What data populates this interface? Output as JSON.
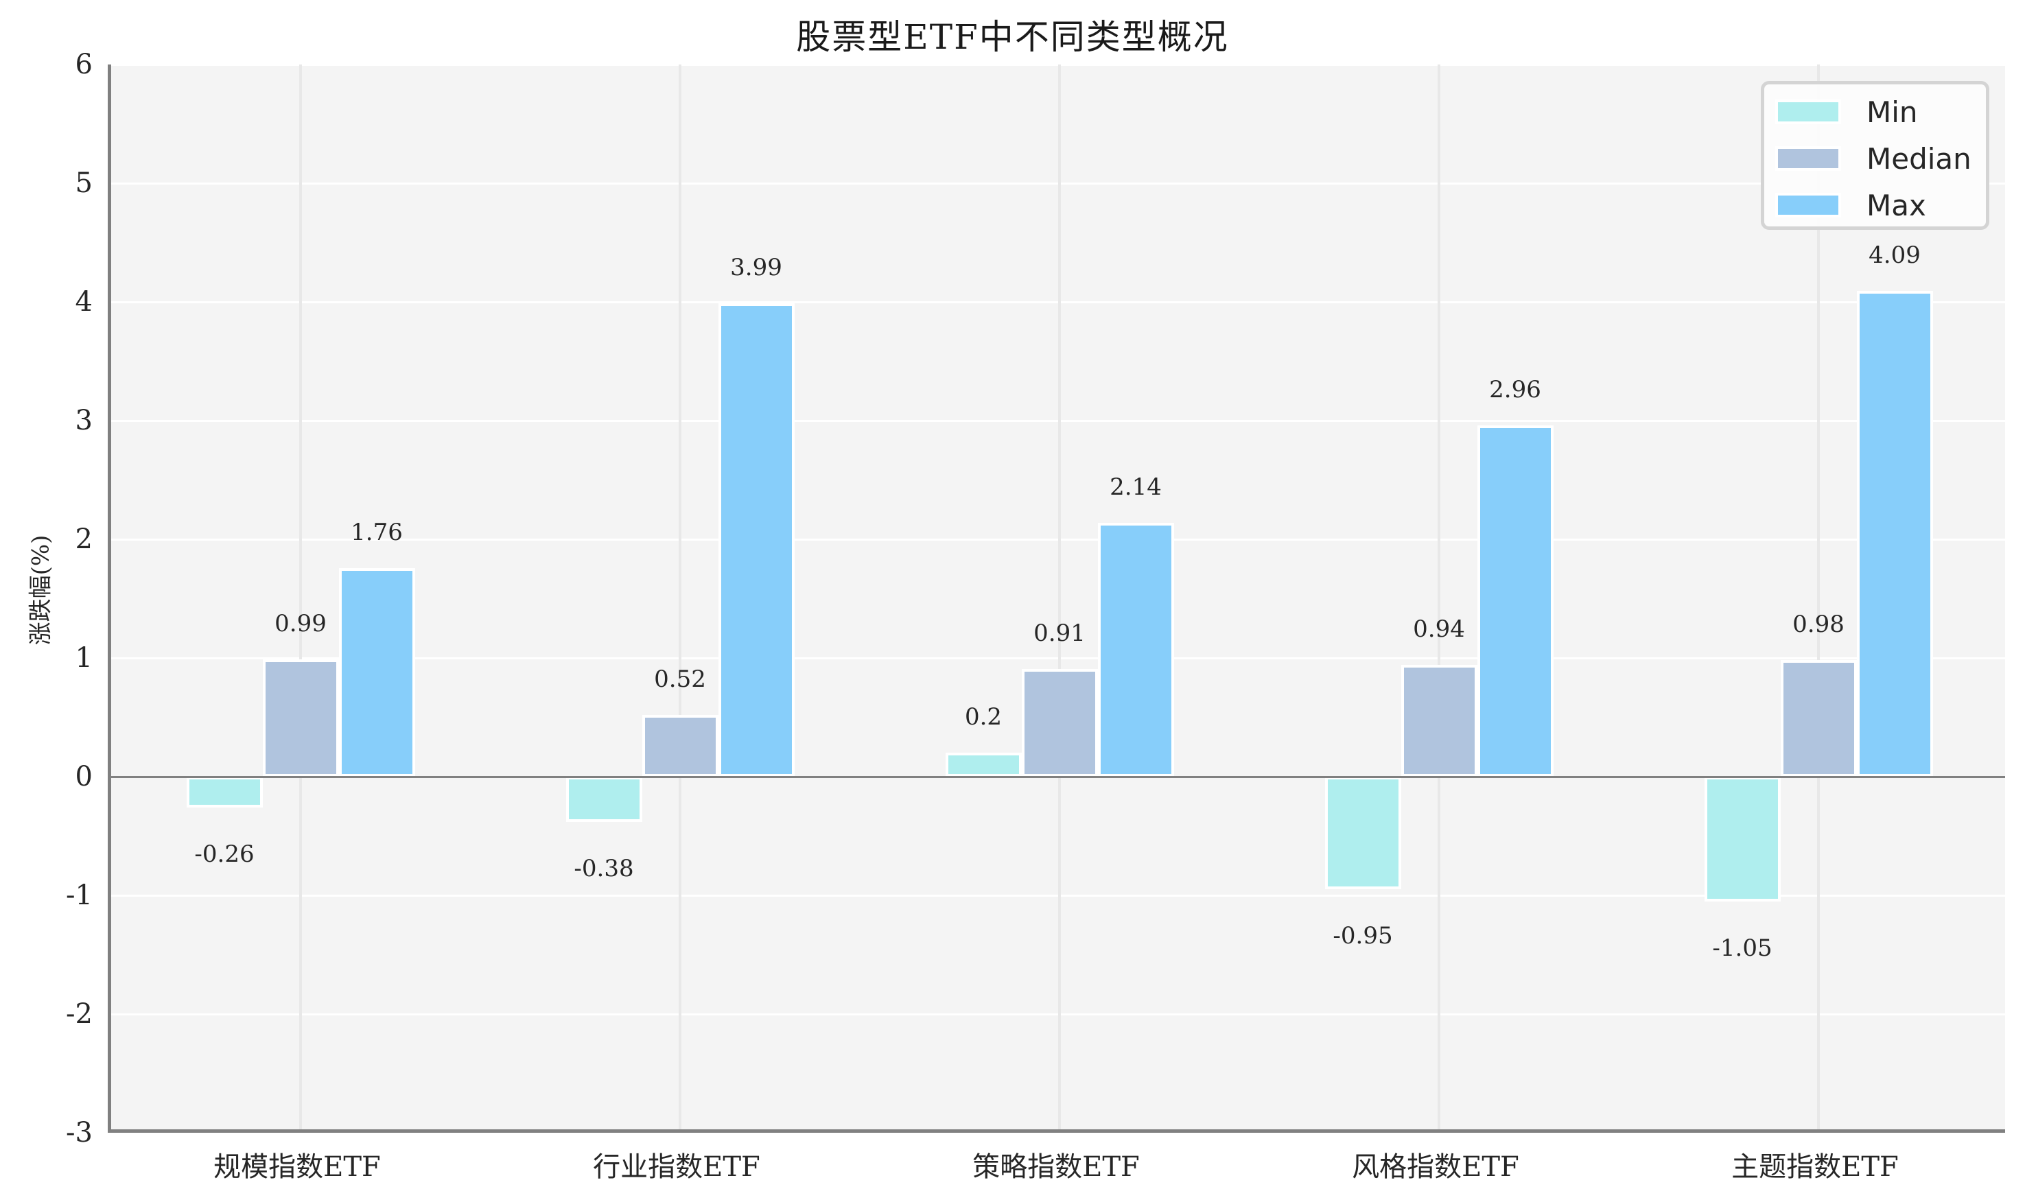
{
  "title": "股票型ETF中不同类型概况",
  "y_axis_label": "涨跌幅(%)",
  "y_ticks": [
    "6",
    "5",
    "4",
    "3",
    "2",
    "1",
    "0",
    "-1",
    "-2",
    "-3"
  ],
  "legend": [
    {
      "label": "Min",
      "color": "#afeeee"
    },
    {
      "label": "Median",
      "color": "#b0c4de"
    },
    {
      "label": "Max",
      "color": "#87cefa"
    }
  ],
  "chart_data": {
    "type": "bar",
    "title": "股票型ETF中不同类型概况",
    "xlabel": "",
    "ylabel": "涨跌幅(%)",
    "ylim": [
      -3,
      6
    ],
    "yticks": [
      -3,
      -2,
      -1,
      0,
      1,
      2,
      3,
      4,
      5,
      6
    ],
    "grid": true,
    "legend_position": "upper right",
    "categories": [
      "规模指数ETF",
      "行业指数ETF",
      "策略指数ETF",
      "风格指数ETF",
      "主题指数ETF"
    ],
    "series": [
      {
        "name": "Min",
        "color": "#afeeee",
        "values": [
          -0.26,
          -0.38,
          0.2,
          -0.95,
          -1.05
        ],
        "labels": [
          "-0.26",
          "-0.38",
          "0.2",
          "-0.95",
          "-1.05"
        ]
      },
      {
        "name": "Median",
        "color": "#b0c4de",
        "values": [
          0.99,
          0.52,
          0.91,
          0.94,
          0.98
        ],
        "labels": [
          "0.99",
          "0.52",
          "0.91",
          "0.94",
          "0.98"
        ]
      },
      {
        "name": "Max",
        "color": "#87cefa",
        "values": [
          1.76,
          3.99,
          2.14,
          2.96,
          4.09
        ],
        "labels": [
          "1.76",
          "3.99",
          "2.14",
          "2.96",
          "4.09"
        ]
      }
    ]
  }
}
